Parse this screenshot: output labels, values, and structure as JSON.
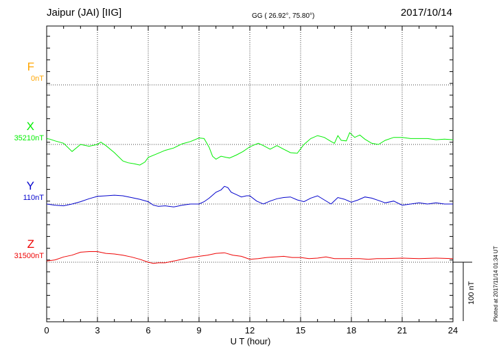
{
  "header": {
    "station": "Jaipur (JAI)  [IIG]",
    "coords": "GG ( 26.92°,  75.80°)",
    "date": "2017/10/14"
  },
  "plotted_note": "Plotted at 2017/11/14 01:34 UT",
  "scale_bar": {
    "label": "100 nT",
    "value_nT": 100
  },
  "chart_data": {
    "type": "line",
    "title": "Jaipur (JAI)  [IIG]",
    "xlabel": "U T (hour)",
    "xlim": [
      0,
      24
    ],
    "xticks": [
      "0",
      "3",
      "6",
      "9",
      "12",
      "15",
      "18",
      "21",
      "24"
    ],
    "grid": true,
    "series": [
      {
        "name": "F",
        "baseline_label": "0nT",
        "baseline_nT": 0,
        "color": "#ffa500",
        "x": [],
        "y": []
      },
      {
        "name": "X",
        "baseline_label": "35210nT",
        "baseline_nT": 35210,
        "color": "#00ee00",
        "x": [
          0,
          0.2,
          0.5,
          1.0,
          1.5,
          2.0,
          2.5,
          3.0,
          3.2,
          3.5,
          4.0,
          4.5,
          4.8,
          5.2,
          5.5,
          5.8,
          6.0,
          6.5,
          7.0,
          7.5,
          8.0,
          8.5,
          9.0,
          9.3,
          9.6,
          9.8,
          10.0,
          10.3,
          10.6,
          10.8,
          11.2,
          11.6,
          12.0,
          12.5,
          12.8,
          13.2,
          13.6,
          14.0,
          14.4,
          14.8,
          15.2,
          15.6,
          16.0,
          16.4,
          16.8,
          17.0,
          17.2,
          17.4,
          17.7,
          17.9,
          18.2,
          18.5,
          18.8,
          19.2,
          19.6,
          20.0,
          20.5,
          21.0,
          21.5,
          22.0,
          22.5,
          23.0,
          23.5,
          24.0
        ],
        "y": [
          35220,
          35219,
          35216,
          35212,
          35198,
          35210,
          35207,
          35210,
          35214,
          35208,
          35196,
          35182,
          35179,
          35177,
          35175,
          35180,
          35188,
          35194,
          35200,
          35204,
          35211,
          35215,
          35221,
          35220,
          35205,
          35190,
          35185,
          35190,
          35188,
          35187,
          35192,
          35198,
          35206,
          35212,
          35208,
          35202,
          35208,
          35202,
          35196,
          35195,
          35210,
          35220,
          35225,
          35222,
          35215,
          35212,
          35225,
          35217,
          35216,
          35230,
          35222,
          35226,
          35219,
          35212,
          35210,
          35217,
          35222,
          35222,
          35220,
          35220,
          35220,
          35218,
          35219,
          35218
        ]
      },
      {
        "name": "Y",
        "baseline_label": "110nT",
        "baseline_nT": 110,
        "color": "#0000cc",
        "x": [
          0,
          0.5,
          1.0,
          1.5,
          2.0,
          2.5,
          3.0,
          3.5,
          4.0,
          4.5,
          5.0,
          5.5,
          6.0,
          6.3,
          6.6,
          7.0,
          7.5,
          8.0,
          8.5,
          9.0,
          9.3,
          9.6,
          9.8,
          10.0,
          10.3,
          10.5,
          10.7,
          10.9,
          11.2,
          11.5,
          11.8,
          12.0,
          12.4,
          12.8,
          13.2,
          13.6,
          14.0,
          14.4,
          14.8,
          15.2,
          15.6,
          16.0,
          16.4,
          16.8,
          17.2,
          17.6,
          18.0,
          18.4,
          18.8,
          19.2,
          19.6,
          20.0,
          20.5,
          21.0,
          21.5,
          22.0,
          22.5,
          23.0,
          23.5,
          24.0
        ],
        "y": [
          110,
          108,
          107,
          110,
          114,
          119,
          123,
          124,
          125,
          124,
          121,
          118,
          114,
          108,
          106,
          107,
          105,
          108,
          110,
          110,
          114,
          120,
          125,
          130,
          134,
          140,
          138,
          130,
          126,
          122,
          124,
          124,
          115,
          110,
          115,
          119,
          121,
          122,
          117,
          114,
          120,
          124,
          117,
          110,
          121,
          118,
          113,
          117,
          122,
          120,
          116,
          112,
          115,
          108,
          110,
          112,
          110,
          112,
          110,
          110
        ]
      },
      {
        "name": "Z",
        "baseline_label": "31500nT",
        "baseline_nT": 31500,
        "color": "#ee0000",
        "x": [
          0,
          0.5,
          1.0,
          1.5,
          2.0,
          2.5,
          3.0,
          3.5,
          4.0,
          4.5,
          5.0,
          5.5,
          6.0,
          6.3,
          6.6,
          7.0,
          7.5,
          8.0,
          8.5,
          9.0,
          9.5,
          10.0,
          10.5,
          11.0,
          11.5,
          12.0,
          12.5,
          13.0,
          13.5,
          14.0,
          14.5,
          15.0,
          15.5,
          16.0,
          16.5,
          17.0,
          17.5,
          18.0,
          18.5,
          19.0,
          19.5,
          20.0,
          21.0,
          22.0,
          23.0,
          24.0
        ],
        "y": [
          31502,
          31504,
          31509,
          31512,
          31517,
          31518,
          31518,
          31515,
          31514,
          31512,
          31509,
          31505,
          31500,
          31498,
          31499,
          31499,
          31502,
          31505,
          31508,
          31510,
          31512,
          31515,
          31516,
          31512,
          31510,
          31505,
          31506,
          31508,
          31509,
          31510,
          31508,
          31508,
          31506,
          31507,
          31509,
          31506,
          31506,
          31506,
          31506,
          31505,
          31506,
          31506,
          31507,
          31506,
          31507,
          31506
        ]
      }
    ]
  }
}
